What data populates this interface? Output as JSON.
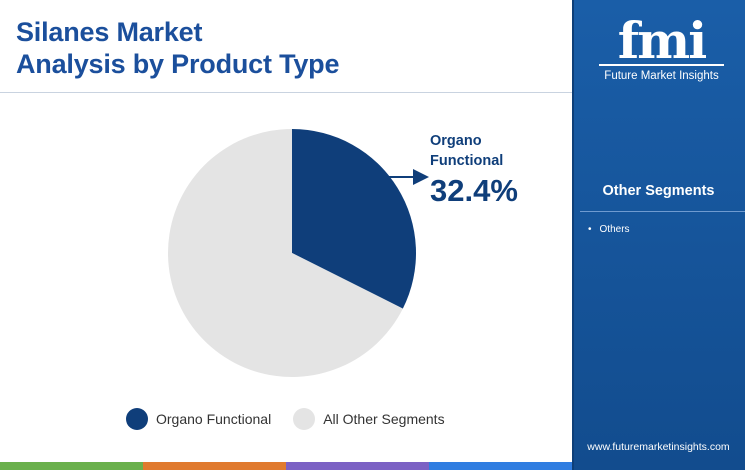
{
  "title_line1": "Silanes Market",
  "title_line2": "Analysis by Product Type",
  "colors": {
    "title": "#1b4f9c",
    "organo": "#0f3e7a",
    "others": "#e4e4e4",
    "sidebar": "#1a5ea8",
    "bar": [
      "#6ab04c",
      "#e07a2e",
      "#7b61c4",
      "#2f7de1"
    ]
  },
  "chart_data": {
    "type": "pie",
    "title": "Silanes Market Analysis by Product Type",
    "slices": [
      {
        "label": "Organo Functional",
        "value": 32.4,
        "color": "#0f3e7a"
      },
      {
        "label": "All Other Segments",
        "value": 67.6,
        "color": "#e4e4e4"
      }
    ],
    "annotation": {
      "label": "Organo Functional",
      "value_text": "32.4%"
    },
    "legend_position": "bottom"
  },
  "legend": [
    {
      "label": "Organo Functional",
      "color": "#0f3e7a"
    },
    {
      "label": "All Other Segments",
      "color": "#e4e4e4"
    }
  ],
  "callout": {
    "label_line1": "Organo",
    "label_line2": "Functional",
    "value": "32.4%"
  },
  "sidebar": {
    "logo_text": "fmi",
    "logo_subtitle": "Future Market Insights",
    "segments_title": "Other Segments",
    "segments": [
      "Others"
    ],
    "website": "www.futuremarketinsights.com"
  }
}
